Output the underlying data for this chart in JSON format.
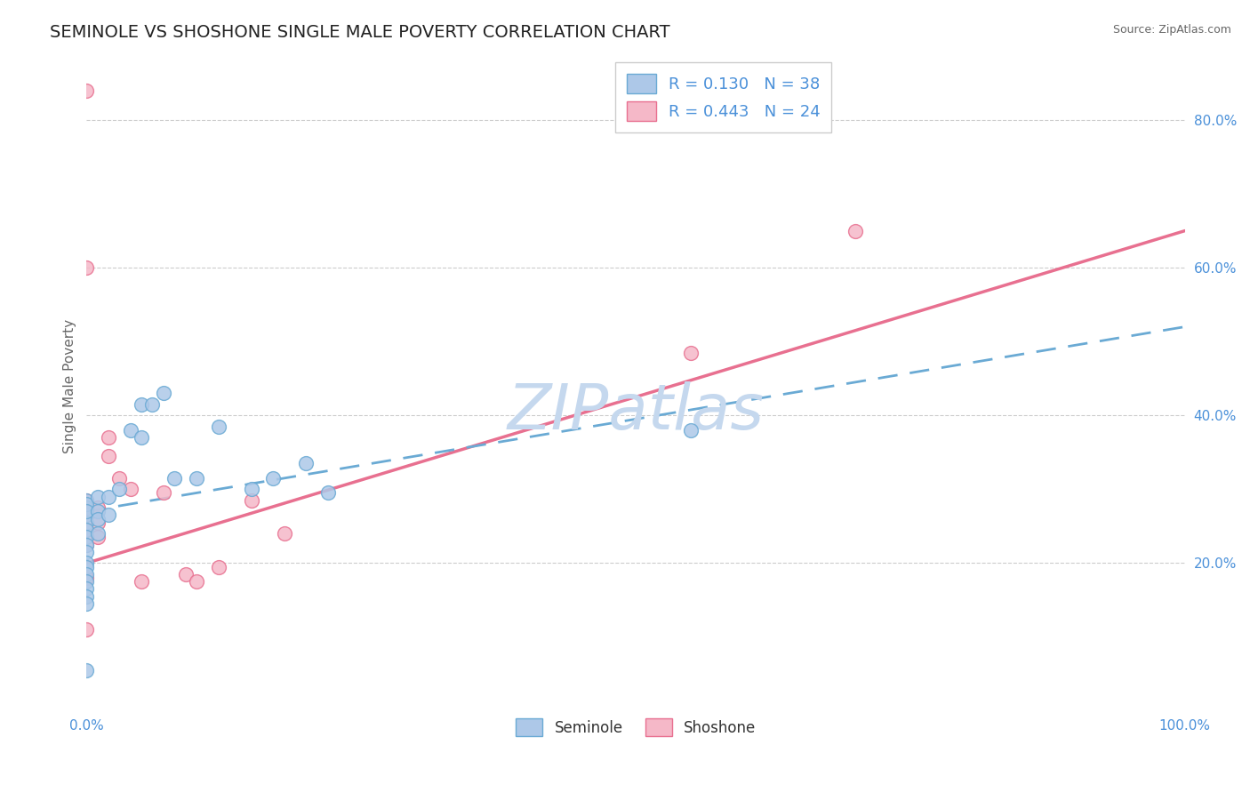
{
  "title": "SEMINOLE VS SHOSHONE SINGLE MALE POVERTY CORRELATION CHART",
  "source": "Source: ZipAtlas.com",
  "ylabel": "Single Male Poverty",
  "watermark": "ZIPatlas",
  "xlim": [
    0,
    1.0
  ],
  "ylim": [
    0,
    0.88
  ],
  "yticks_right": [
    0.2,
    0.4,
    0.6,
    0.8
  ],
  "ytick_labels_right": [
    "20.0%",
    "40.0%",
    "60.0%",
    "80.0%"
  ],
  "seminole_fill_color": "#adc8e8",
  "shoshone_fill_color": "#f5b8c8",
  "seminole_edge_color": "#6aaad4",
  "shoshone_edge_color": "#e87090",
  "seminole_line_color": "#6aaad4",
  "shoshone_line_color": "#e87090",
  "R_seminole": 0.13,
  "N_seminole": 38,
  "R_shoshone": 0.443,
  "N_shoshone": 24,
  "legend_color": "#4a90d9",
  "seminole_x": [
    0.0,
    0.0,
    0.0,
    0.0,
    0.0,
    0.0,
    0.0,
    0.0,
    0.0,
    0.0,
    0.0,
    0.0,
    0.0,
    0.0,
    0.0,
    0.0,
    0.0,
    0.01,
    0.01,
    0.01,
    0.01,
    0.02,
    0.02,
    0.03,
    0.04,
    0.05,
    0.05,
    0.06,
    0.07,
    0.08,
    0.1,
    0.12,
    0.15,
    0.17,
    0.2,
    0.22,
    0.55,
    0.0
  ],
  "seminole_y": [
    0.285,
    0.275,
    0.265,
    0.255,
    0.245,
    0.235,
    0.225,
    0.215,
    0.2,
    0.195,
    0.185,
    0.175,
    0.165,
    0.155,
    0.145,
    0.28,
    0.27,
    0.29,
    0.27,
    0.26,
    0.24,
    0.29,
    0.265,
    0.3,
    0.38,
    0.415,
    0.37,
    0.415,
    0.43,
    0.315,
    0.315,
    0.385,
    0.3,
    0.315,
    0.335,
    0.295,
    0.38,
    0.055
  ],
  "shoshone_x": [
    0.0,
    0.0,
    0.0,
    0.0,
    0.0,
    0.0,
    0.0,
    0.01,
    0.01,
    0.01,
    0.02,
    0.02,
    0.03,
    0.04,
    0.05,
    0.07,
    0.09,
    0.1,
    0.12,
    0.15,
    0.18,
    0.55,
    0.7,
    0.0
  ],
  "shoshone_y": [
    0.84,
    0.6,
    0.285,
    0.265,
    0.245,
    0.225,
    0.18,
    0.275,
    0.255,
    0.235,
    0.37,
    0.345,
    0.315,
    0.3,
    0.175,
    0.295,
    0.185,
    0.175,
    0.195,
    0.285,
    0.24,
    0.485,
    0.65,
    0.11
  ],
  "seminole_line_x0": 0.0,
  "seminole_line_y0": 0.27,
  "seminole_line_x1": 1.0,
  "seminole_line_y1": 0.52,
  "shoshone_line_x0": 0.0,
  "shoshone_line_y0": 0.2,
  "shoshone_line_x1": 1.0,
  "shoshone_line_y1": 0.65,
  "background_color": "#ffffff",
  "grid_color": "#cccccc",
  "title_fontsize": 14,
  "axis_tick_color": "#4a90d9",
  "watermark_color": "#c5d8ee",
  "watermark_fontsize": 52
}
